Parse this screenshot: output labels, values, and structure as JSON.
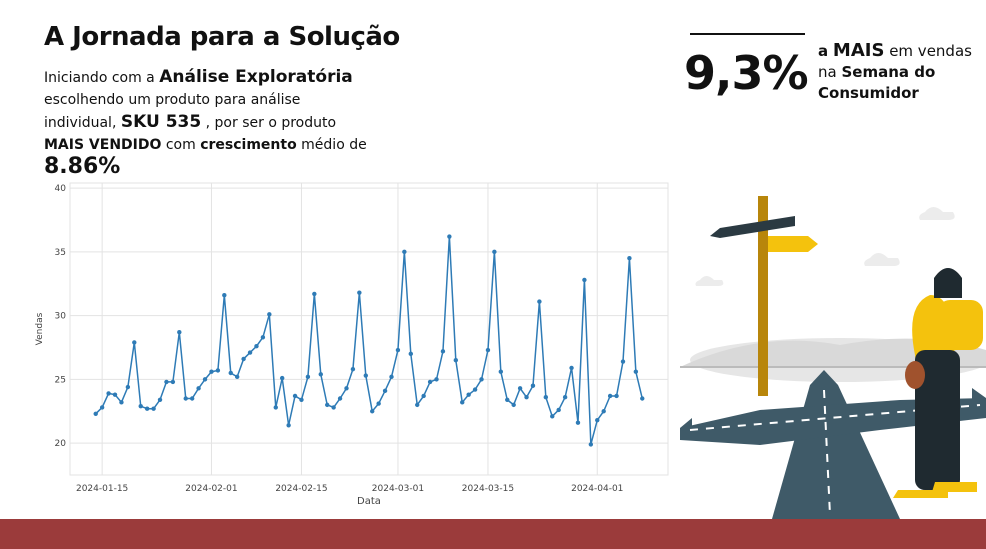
{
  "slide": {
    "title": "A Jornada para a Solução",
    "intro": [
      {
        "text": "Iniciando com a",
        "style": "normal"
      },
      {
        "text": "Análise Exploratória",
        "style": "big"
      },
      {
        "text": "escolhendo um produto para análise individual,",
        "style": "normal"
      },
      {
        "text": "SKU 535",
        "style": "big"
      },
      {
        "text": ", por ser o produto",
        "style": "normal"
      },
      {
        "text": "MAIS VENDIDO",
        "style": "bold"
      },
      {
        "text": "com",
        "style": "normal"
      },
      {
        "text": "crescimento",
        "style": "bold"
      },
      {
        "text": "médio de",
        "style": "normal"
      },
      {
        "text": "8.86%",
        "style": "huge"
      }
    ],
    "kpi": {
      "value": "9,3%",
      "text": [
        {
          "text": "a",
          "style": "bold"
        },
        {
          "text": "MAIS",
          "style": "big"
        },
        {
          "text": "em vendas na",
          "style": "normal"
        },
        {
          "text": "Semana do Consumidor",
          "style": "bold"
        }
      ]
    }
  },
  "chart_data": {
    "type": "line",
    "xlabel": "Data",
    "ylabel": "Vendas",
    "x": [
      "2024-01-14",
      "2024-01-15",
      "2024-01-16",
      "2024-01-17",
      "2024-01-18",
      "2024-01-19",
      "2024-01-20",
      "2024-01-21",
      "2024-01-22",
      "2024-01-23",
      "2024-01-24",
      "2024-01-25",
      "2024-01-26",
      "2024-01-27",
      "2024-01-28",
      "2024-01-29",
      "2024-01-30",
      "2024-01-31",
      "2024-02-01",
      "2024-02-02",
      "2024-02-03",
      "2024-02-04",
      "2024-02-05",
      "2024-02-06",
      "2024-02-07",
      "2024-02-08",
      "2024-02-09",
      "2024-02-10",
      "2024-02-11",
      "2024-02-12",
      "2024-02-13",
      "2024-02-14",
      "2024-02-15",
      "2024-02-16",
      "2024-02-17",
      "2024-02-18",
      "2024-02-19",
      "2024-02-20",
      "2024-02-21",
      "2024-02-22",
      "2024-02-23",
      "2024-02-24",
      "2024-02-25",
      "2024-02-26",
      "2024-02-27",
      "2024-02-28",
      "2024-02-29",
      "2024-03-01",
      "2024-03-02",
      "2024-03-03",
      "2024-03-04",
      "2024-03-05",
      "2024-03-06",
      "2024-03-07",
      "2024-03-08",
      "2024-03-09",
      "2024-03-10",
      "2024-03-11",
      "2024-03-12",
      "2024-03-13",
      "2024-03-14",
      "2024-03-15",
      "2024-03-16",
      "2024-03-17",
      "2024-03-18",
      "2024-03-19",
      "2024-03-20",
      "2024-03-21",
      "2024-03-22",
      "2024-03-23",
      "2024-03-24",
      "2024-03-25",
      "2024-03-26",
      "2024-03-27",
      "2024-03-28",
      "2024-03-29",
      "2024-03-30",
      "2024-03-31",
      "2024-04-01",
      "2024-04-02",
      "2024-04-03",
      "2024-04-04",
      "2024-04-05",
      "2024-04-06",
      "2024-04-07",
      "2024-04-08"
    ],
    "series": [
      {
        "name": "Vendas",
        "color": "#2e7bb6",
        "values": [
          22.3,
          22.8,
          23.9,
          23.8,
          23.2,
          24.4,
          27.9,
          22.9,
          22.7,
          22.7,
          23.4,
          24.8,
          24.8,
          28.7,
          23.5,
          23.5,
          24.3,
          25.0,
          25.6,
          25.7,
          31.6,
          25.5,
          25.2,
          26.6,
          27.1,
          27.6,
          28.3,
          30.1,
          22.8,
          25.1,
          21.4,
          23.7,
          23.4,
          25.2,
          31.7,
          25.4,
          23.0,
          22.8,
          23.5,
          24.3,
          25.8,
          31.8,
          25.3,
          22.5,
          23.1,
          24.1,
          25.2,
          27.3,
          35.0,
          27.0,
          23.0,
          23.7,
          24.8,
          25.0,
          27.2,
          36.2,
          26.5,
          23.2,
          23.8,
          24.2,
          25.0,
          27.3,
          35.0,
          25.6,
          23.4,
          23.0,
          24.3,
          23.6,
          24.5,
          31.1,
          23.6,
          22.1,
          22.6,
          23.6,
          25.9,
          21.6,
          32.8,
          19.9,
          21.8,
          22.5,
          23.7,
          23.7,
          26.4,
          34.5,
          25.6,
          23.5
        ]
      }
    ],
    "xlim": [
      "2024-01-10",
      "2024-04-12"
    ],
    "xticks": [
      "2024-01-15",
      "2024-02-01",
      "2024-02-15",
      "2024-03-01",
      "2024-03-15",
      "2024-04-01"
    ],
    "ylim": [
      17.5,
      40.4
    ],
    "yticks": [
      20,
      25,
      30,
      35,
      40
    ],
    "grid": true
  }
}
